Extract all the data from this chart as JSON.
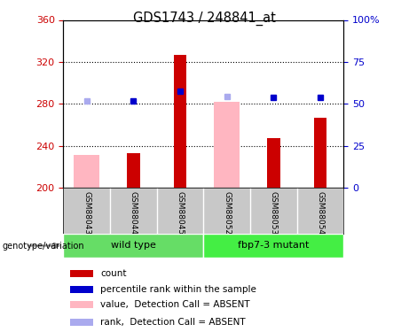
{
  "title": "GDS1743 / 248841_at",
  "samples": [
    "GSM88043",
    "GSM88044",
    "GSM88045",
    "GSM88052",
    "GSM88053",
    "GSM88054"
  ],
  "groups": [
    {
      "name": "wild type",
      "indices": [
        0,
        1,
        2
      ],
      "color": "#66dd66"
    },
    {
      "name": "fbp7-3 mutant",
      "indices": [
        3,
        4,
        5
      ],
      "color": "#44ee44"
    }
  ],
  "bar_base": 200,
  "ylim_left": [
    200,
    360
  ],
  "ylim_right": [
    0,
    100
  ],
  "yticks_left": [
    200,
    240,
    280,
    320,
    360
  ],
  "yticks_right": [
    0,
    25,
    50,
    75,
    100
  ],
  "ytick_labels_right": [
    "0",
    "25",
    "50",
    "75",
    "100%"
  ],
  "count_values": [
    null,
    233,
    327,
    null,
    247,
    267
  ],
  "absent_value_bars": [
    231,
    null,
    null,
    282,
    null,
    null
  ],
  "absent_value_color": "#ffb6c1",
  "count_bar_color": "#cc0000",
  "rank_dots": [
    283,
    283,
    292,
    287,
    286,
    286
  ],
  "rank_dot_color": "#0000cc",
  "rank_dot_absent_color": "#aaaaee",
  "legend_items": [
    {
      "label": "count",
      "color": "#cc0000"
    },
    {
      "label": "percentile rank within the sample",
      "color": "#0000cc"
    },
    {
      "label": "value,  Detection Call = ABSENT",
      "color": "#ffb6c1"
    },
    {
      "label": "rank,  Detection Call = ABSENT",
      "color": "#aaaaee"
    }
  ],
  "plot_bg": "white",
  "tick_label_color_left": "#cc0000",
  "tick_label_color_right": "#0000cc",
  "label_area_color": "#c8c8c8",
  "genotype_label": "genotype/variation"
}
